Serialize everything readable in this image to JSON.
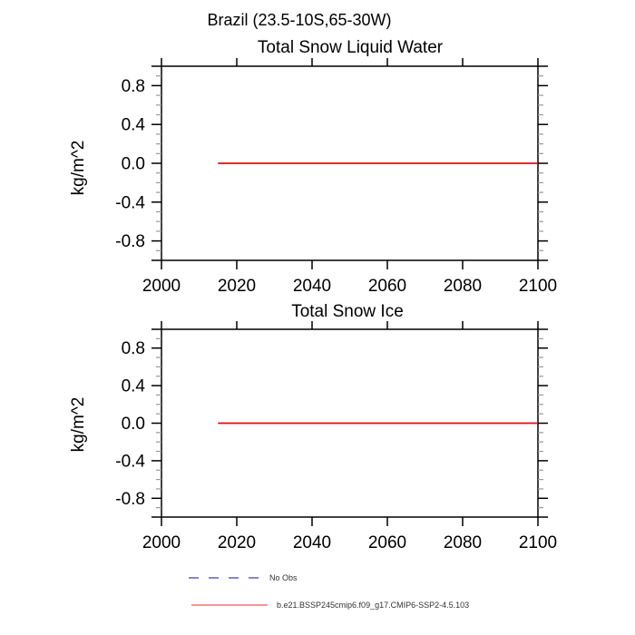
{
  "page_title": "Brazil (23.5-10S,65-30W)",
  "chart_data": [
    {
      "type": "line",
      "title": "Total Snow Liquid Water",
      "xlabel": "",
      "ylabel": "kg/m^2",
      "xlim": [
        2000,
        2100
      ],
      "ylim": [
        -1.0,
        1.0
      ],
      "xticks": [
        2000,
        2020,
        2040,
        2060,
        2080,
        2100
      ],
      "yticks_labeled": [
        -0.8,
        -0.4,
        0.0,
        0.4,
        0.8
      ],
      "y_minor_step": 0.1,
      "grid": false,
      "series": [
        {
          "name": "b.e21.BSSP245cmip6.f09_g17.CMIP6-SSP2-4.5.103",
          "color": "#ff0000",
          "x": [
            2015,
            2100
          ],
          "values": [
            0.0,
            0.0
          ]
        }
      ]
    },
    {
      "type": "line",
      "title": "Total Snow Ice",
      "xlabel": "",
      "ylabel": "kg/m^2",
      "xlim": [
        2000,
        2100
      ],
      "ylim": [
        -1.0,
        1.0
      ],
      "xticks": [
        2000,
        2020,
        2040,
        2060,
        2080,
        2100
      ],
      "yticks_labeled": [
        -0.8,
        -0.4,
        0.0,
        0.4,
        0.8
      ],
      "y_minor_step": 0.1,
      "grid": false,
      "series": [
        {
          "name": "b.e21.BSSP245cmip6.f09_g17.CMIP6-SSP2-4.5.103",
          "color": "#ff0000",
          "x": [
            2015,
            2100
          ],
          "values": [
            0.0,
            0.0
          ]
        }
      ]
    }
  ],
  "legend": {
    "items": [
      {
        "label": "No Obs",
        "color": "#5c5cd6",
        "line_style": "dashed"
      },
      {
        "label": "b.e21.BSSP245cmip6.f09_g17.CMIP6-SSP2-4.5.103",
        "color": "#ff5050",
        "line_style": "solid"
      }
    ]
  }
}
